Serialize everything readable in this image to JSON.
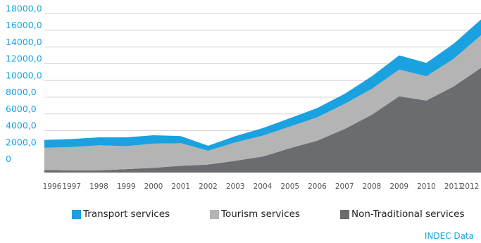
{
  "chart_data": {
    "type": "area",
    "stacked": true,
    "x": [
      "1996",
      "1997",
      "1998",
      "1999",
      "2000",
      "2001",
      "2002",
      "2003",
      "2004",
      "2005",
      "2006",
      "2007",
      "2008",
      "2009",
      "2010",
      "2011",
      "2012"
    ],
    "yticks": [
      "0",
      "2000,0",
      "4000,0",
      "6000,0",
      "8000,0",
      "10000,0",
      "12000,0",
      "14000,0",
      "16000,0",
      "18000,0"
    ],
    "ylim": [
      0,
      18000
    ],
    "series": [
      {
        "name": "Non-Traditional services",
        "color": "#6a6c6f",
        "values": [
          -700,
          -750,
          -750,
          -600,
          -450,
          -200,
          -50,
          400,
          900,
          1900,
          2800,
          4200,
          5900,
          8100,
          7600,
          9300,
          11500
        ]
      },
      {
        "name": "Tourism services",
        "color": "#b4b4b4",
        "values": [
          2650,
          2800,
          3000,
          2750,
          2900,
          2700,
          1650,
          2200,
          2500,
          2600,
          2800,
          3000,
          3100,
          3200,
          2900,
          3300,
          3900
        ]
      },
      {
        "name": "Transport services",
        "color": "#1aa1e0",
        "values": [
          950,
          950,
          950,
          1050,
          1000,
          850,
          600,
          750,
          900,
          1000,
          1100,
          1200,
          1500,
          1700,
          1600,
          1800,
          1900
        ]
      }
    ],
    "legend_position": "bottom",
    "grid": "horizontal"
  },
  "source": "INDEC Data"
}
